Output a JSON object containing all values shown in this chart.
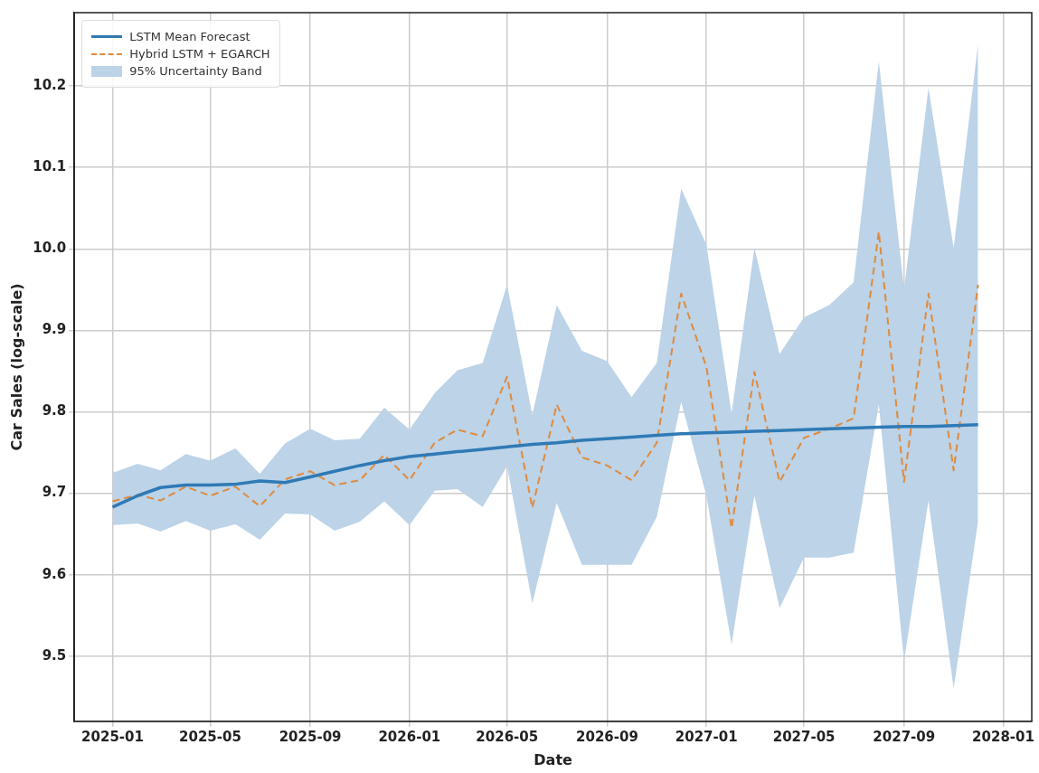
{
  "chart_data": {
    "type": "line",
    "xlabel": "Date",
    "ylabel": "Car Sales (log-scale)",
    "x": [
      "2025-01",
      "2025-02",
      "2025-03",
      "2025-04",
      "2025-05",
      "2025-06",
      "2025-07",
      "2025-08",
      "2025-09",
      "2025-10",
      "2025-11",
      "2025-12",
      "2026-01",
      "2026-02",
      "2026-03",
      "2026-04",
      "2026-05",
      "2026-06",
      "2026-07",
      "2026-08",
      "2026-09",
      "2026-10",
      "2026-11",
      "2026-12",
      "2027-01",
      "2027-02",
      "2027-03",
      "2027-04",
      "2027-05",
      "2027-06",
      "2027-07",
      "2027-08",
      "2027-09",
      "2027-10",
      "2027-11",
      "2027-12"
    ],
    "series": [
      {
        "name": "LSTM Mean Forecast",
        "color": "#2f7ab5",
        "line_style": "solid",
        "values": [
          9.683,
          9.697,
          9.707,
          9.71,
          9.71,
          9.711,
          9.715,
          9.713,
          9.72,
          9.727,
          9.734,
          9.74,
          9.745,
          9.748,
          9.751,
          9.754,
          9.757,
          9.76,
          9.762,
          9.765,
          9.767,
          9.769,
          9.771,
          9.773,
          9.774,
          9.775,
          9.776,
          9.777,
          9.778,
          9.779,
          9.78,
          9.781,
          9.782,
          9.782,
          9.783,
          9.784
        ]
      },
      {
        "name": "Hybrid LSTM + EGARCH",
        "color": "#e08a3c",
        "line_style": "dashed",
        "values": [
          9.69,
          9.698,
          9.691,
          9.708,
          9.697,
          9.708,
          9.684,
          9.717,
          9.727,
          9.71,
          9.716,
          9.747,
          9.716,
          9.762,
          9.778,
          9.77,
          9.843,
          9.682,
          9.809,
          9.744,
          9.734,
          9.716,
          9.762,
          9.945,
          9.855,
          9.657,
          9.849,
          9.714,
          9.768,
          9.779,
          9.792,
          10.021,
          9.714,
          9.945,
          9.728,
          9.956
        ]
      },
      {
        "name": "95% Uncertainty Band",
        "type": "area",
        "color": "#bcd3e8",
        "values": [
          null,
          null,
          null,
          null,
          null,
          null,
          null,
          null,
          null,
          null,
          null,
          null,
          null,
          null,
          null,
          null,
          null,
          null,
          null,
          null,
          null,
          null,
          null,
          null,
          null,
          null,
          null,
          null,
          null,
          null,
          null,
          null,
          null,
          null,
          null,
          null
        ],
        "lower": [
          9.661,
          9.663,
          9.653,
          9.666,
          9.654,
          9.662,
          9.643,
          9.675,
          9.674,
          9.654,
          9.665,
          9.69,
          9.661,
          9.703,
          9.705,
          9.683,
          9.733,
          9.565,
          9.688,
          9.612,
          9.612,
          9.612,
          9.671,
          9.812,
          9.697,
          9.514,
          9.697,
          9.559,
          9.621,
          9.621,
          9.627,
          9.809,
          9.494,
          9.691,
          9.46,
          9.666
        ],
        "upper": [
          9.725,
          9.736,
          9.728,
          9.748,
          9.74,
          9.755,
          9.724,
          9.761,
          9.779,
          9.765,
          9.767,
          9.805,
          9.778,
          9.823,
          9.851,
          9.86,
          9.956,
          9.796,
          9.931,
          9.875,
          9.862,
          9.818,
          9.86,
          10.074,
          10.005,
          9.798,
          10.001,
          9.871,
          9.916,
          9.931,
          9.959,
          10.23,
          9.95,
          10.198,
          10.001,
          10.252
        ]
      }
    ],
    "xlim": [
      "2024-11-15",
      "2028-02-05"
    ],
    "xticks": [
      "2025-01",
      "2025-05",
      "2025-09",
      "2026-01",
      "2026-05",
      "2026-09",
      "2027-01",
      "2027-05",
      "2027-09",
      "2028-01"
    ],
    "ylim": [
      9.42,
      10.29
    ],
    "yticks": [
      9.5,
      9.6,
      9.7,
      9.8,
      9.9,
      {
        "value": 10.0,
        "label": "10.0"
      },
      10.1,
      10.2
    ],
    "grid": true,
    "legend": "top left",
    "marker": "none"
  }
}
